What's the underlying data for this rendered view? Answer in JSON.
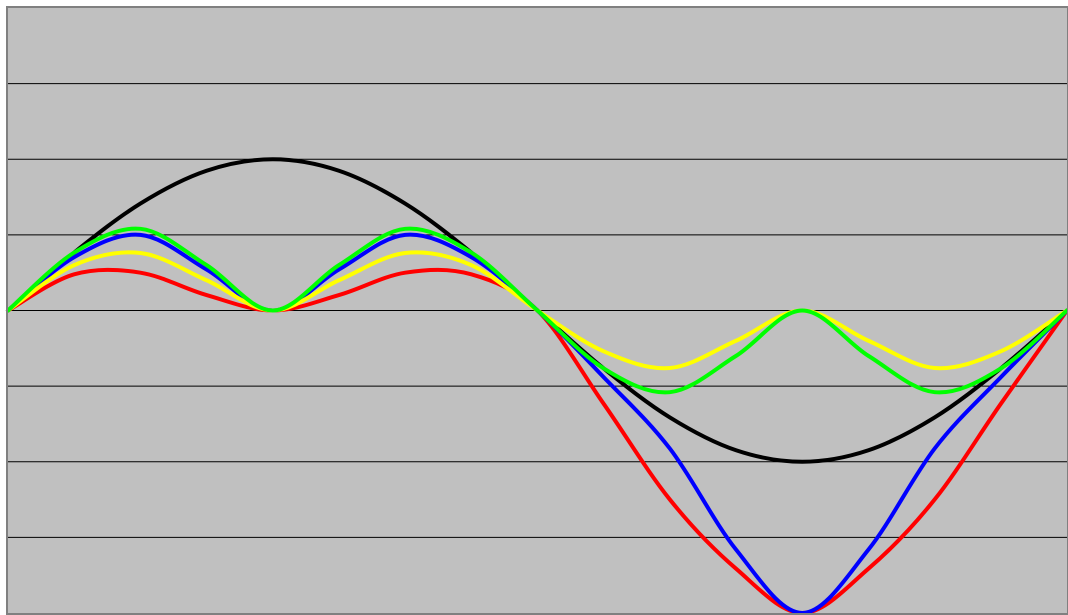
{
  "chart_data": {
    "type": "line",
    "title": "",
    "xlabel": "",
    "ylabel": "",
    "xlim": [
      0,
      2
    ],
    "ylim": [
      -2,
      2
    ],
    "grid": true,
    "grid_ticks": [
      -2,
      -1.5,
      -1,
      -0.5,
      0,
      0.5,
      1,
      1.5,
      2
    ],
    "background": "#c0c0c0",
    "series": [
      {
        "color": "#000000",
        "x": [
          0,
          0.125,
          0.25,
          0.375,
          0.5,
          0.625,
          0.75,
          0.875,
          1,
          1.125,
          1.25,
          1.375,
          1.5,
          1.625,
          1.75,
          1.875,
          2
        ],
        "y": [
          0,
          0.383,
          0.707,
          0.924,
          1,
          0.924,
          0.707,
          0.383,
          0,
          -0.383,
          -0.707,
          -0.924,
          -1,
          -0.924,
          -0.707,
          -0.383,
          0
        ]
      },
      {
        "color": "#ff0000",
        "x": [
          0,
          0.125,
          0.25,
          0.375,
          0.5,
          0.625,
          0.75,
          0.875,
          1,
          1.125,
          1.25,
          1.375,
          1.5,
          1.625,
          1.75,
          1.875,
          2
        ],
        "y": [
          0,
          0.239,
          0.25,
          0.102,
          0,
          0.102,
          0.25,
          0.239,
          0,
          -0.617,
          -1.25,
          -1.707,
          -2,
          -1.707,
          -1.25,
          -0.617,
          0
        ]
      },
      {
        "color": "#0000ff",
        "x": [
          0,
          0.125,
          0.25,
          0.375,
          0.5,
          0.625,
          0.75,
          0.875,
          1,
          1.125,
          1.25,
          1.375,
          1.5,
          1.625,
          1.75,
          1.875,
          2
        ],
        "y": [
          0,
          0.353,
          0.5,
          0.271,
          0,
          0.271,
          0.5,
          0.353,
          0,
          -0.441,
          -0.913,
          -1.581,
          -2,
          -1.581,
          -0.913,
          -0.441,
          0
        ]
      },
      {
        "color": "#ffff00",
        "x": [
          0,
          0.125,
          0.25,
          0.375,
          0.5,
          0.625,
          0.75,
          0.875,
          1,
          1.125,
          1.25,
          1.375,
          1.5,
          1.625,
          1.75,
          1.875,
          2
        ],
        "y": [
          0,
          0.3,
          0.38,
          0.2,
          0,
          0.2,
          0.38,
          0.3,
          0,
          -0.27,
          -0.38,
          -0.2,
          0,
          -0.2,
          -0.38,
          -0.27,
          0
        ]
      },
      {
        "color": "#00ff00",
        "x": [
          0,
          0.125,
          0.25,
          0.375,
          0.5,
          0.625,
          0.75,
          0.875,
          1,
          1.125,
          1.25,
          1.375,
          1.5,
          1.625,
          1.75,
          1.875,
          2
        ],
        "y": [
          0,
          0.383,
          0.54,
          0.3,
          0,
          0.3,
          0.54,
          0.383,
          0,
          -0.383,
          -0.54,
          -0.3,
          0,
          -0.3,
          -0.54,
          -0.383,
          0
        ]
      }
    ]
  }
}
